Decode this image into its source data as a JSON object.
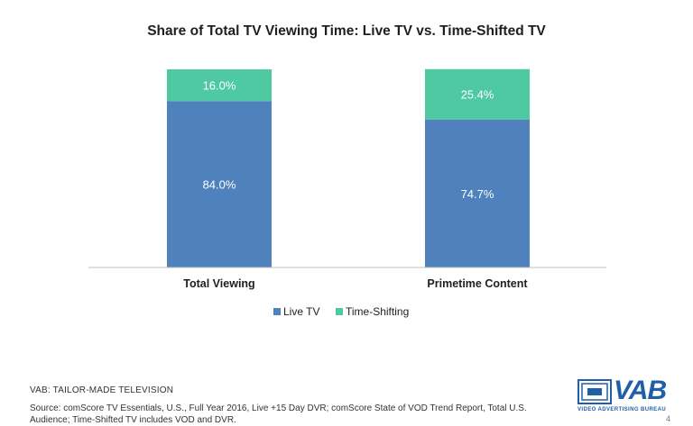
{
  "chart_data": {
    "type": "bar",
    "stacked": true,
    "title": "Share of Total TV Viewing Time: Live TV vs. Time-Shifted TV",
    "categories": [
      "Total Viewing",
      "Primetime Content"
    ],
    "series": [
      {
        "name": "Live TV",
        "values": [
          84.0,
          74.7
        ],
        "labels": [
          "84.0%",
          "74.7%"
        ],
        "color": "#4f81bd"
      },
      {
        "name": "Time-Shifting",
        "values": [
          16.0,
          25.4
        ],
        "labels": [
          "16.0%",
          "25.4%"
        ],
        "color": "#4fc9a2"
      }
    ],
    "ylim": [
      0,
      100
    ],
    "grid": false,
    "legend_position": "bottom"
  },
  "footer": {
    "tagline": "VAB: TAILOR-MADE TELEVISION",
    "source": "Source: comScore TV Essentials, U.S., Full Year 2016, Live +15 Day DVR; comScore State of VOD Trend Report, Total U.S. Audience; Time-Shifted TV includes VOD and DVR.",
    "page_number": "4"
  },
  "logo": {
    "letters": "VAB",
    "subtitle": "VIDEO ADVERTISING BUREAU",
    "color": "#1f5fa8"
  }
}
